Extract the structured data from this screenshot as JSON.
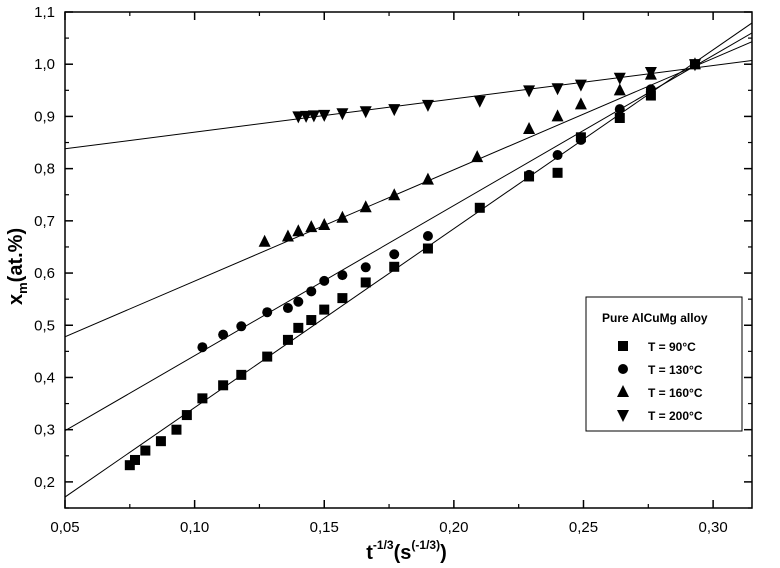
{
  "chart_data": {
    "type": "scatter",
    "xlabel": "t",
    "xlabel_sup": "-1/3",
    "xlabel_unit": "(s",
    "xlabel_unit_sup": "(-1/3)",
    "xlabel_unit_close": ")",
    "ylabel": "x",
    "ylabel_sub": "m",
    "ylabel_unit": "(at.%)",
    "xlim": [
      0.05,
      0.315
    ],
    "ylim": [
      0.15,
      1.1
    ],
    "x_ticks": [
      0.05,
      0.1,
      0.15,
      0.2,
      0.25,
      0.3
    ],
    "x_tick_labels": [
      "0,05",
      "0,10",
      "0,15",
      "0,20",
      "0,25",
      "0,30"
    ],
    "y_ticks": [
      0.2,
      0.3,
      0.4,
      0.5,
      0.6,
      0.7,
      0.8,
      0.9,
      1.0,
      1.1
    ],
    "y_tick_labels": [
      "0,2",
      "0,3",
      "0,4",
      "0,5",
      "0,6",
      "0,7",
      "0,8",
      "0,9",
      "1,0",
      "1,1"
    ],
    "grid": false,
    "legend": {
      "title": "Pure AlCuMg alloy",
      "placement": "bottom-right"
    },
    "series": [
      {
        "name": "T = 90°C",
        "marker": "square",
        "x": [
          0.075,
          0.077,
          0.081,
          0.087,
          0.093,
          0.097,
          0.103,
          0.111,
          0.118,
          0.128,
          0.136,
          0.14,
          0.145,
          0.15,
          0.157,
          0.166,
          0.177,
          0.19,
          0.21,
          0.229,
          0.24,
          0.249,
          0.264,
          0.276,
          0.293
        ],
        "y": [
          0.232,
          0.242,
          0.26,
          0.278,
          0.3,
          0.328,
          0.36,
          0.385,
          0.405,
          0.44,
          0.472,
          0.495,
          0.51,
          0.53,
          0.552,
          0.582,
          0.612,
          0.647,
          0.725,
          0.785,
          0.792,
          0.86,
          0.897,
          0.94,
          1.0
        ],
        "fit": [
          [
            0.05,
            0.171
          ],
          [
            0.315,
            1.079
          ]
        ]
      },
      {
        "name": "T = 130°C",
        "marker": "circle",
        "x": [
          0.103,
          0.111,
          0.118,
          0.128,
          0.136,
          0.14,
          0.145,
          0.15,
          0.157,
          0.166,
          0.177,
          0.19,
          0.229,
          0.24,
          0.249,
          0.264,
          0.276,
          0.293
        ],
        "y": [
          0.458,
          0.482,
          0.498,
          0.525,
          0.533,
          0.545,
          0.565,
          0.585,
          0.596,
          0.611,
          0.636,
          0.671,
          0.788,
          0.826,
          0.855,
          0.914,
          0.952,
          1.0
        ],
        "fit": [
          [
            0.05,
            0.298
          ],
          [
            0.315,
            1.06
          ]
        ]
      },
      {
        "name": "T = 160°C",
        "marker": "triangle-up",
        "x": [
          0.127,
          0.136,
          0.14,
          0.145,
          0.15,
          0.157,
          0.166,
          0.177,
          0.19,
          0.209,
          0.229,
          0.24,
          0.249,
          0.264,
          0.276,
          0.293
        ],
        "y": [
          0.66,
          0.67,
          0.68,
          0.688,
          0.692,
          0.706,
          0.726,
          0.749,
          0.779,
          0.822,
          0.876,
          0.9,
          0.923,
          0.95,
          0.98,
          1.0
        ],
        "fit": [
          [
            0.05,
            0.478
          ],
          [
            0.315,
            1.043
          ]
        ]
      },
      {
        "name": "T = 200°C",
        "marker": "triangle-down",
        "x": [
          0.14,
          0.143,
          0.146,
          0.15,
          0.157,
          0.166,
          0.177,
          0.19,
          0.21,
          0.229,
          0.24,
          0.249,
          0.264,
          0.276,
          0.293
        ],
        "y": [
          0.9,
          0.901,
          0.902,
          0.903,
          0.906,
          0.91,
          0.914,
          0.922,
          0.93,
          0.95,
          0.954,
          0.961,
          0.974,
          0.985,
          1.0
        ],
        "fit": [
          [
            0.05,
            0.838
          ],
          [
            0.315,
            1.007
          ]
        ]
      }
    ]
  }
}
